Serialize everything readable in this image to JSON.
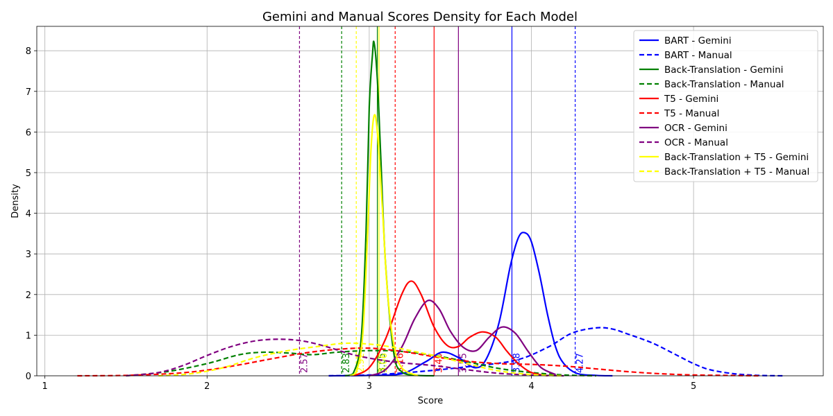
{
  "chart_data": {
    "type": "line",
    "title": "Gemini and Manual Scores Density for Each Model",
    "xlabel": "Score",
    "ylabel": "Density",
    "xlim": [
      0.95,
      5.8
    ],
    "ylim": [
      0,
      8.6
    ],
    "xticks": [
      1,
      2,
      3,
      4,
      5
    ],
    "yticks": [
      0,
      1,
      2,
      3,
      4,
      5,
      6,
      7,
      8
    ],
    "grid": true,
    "legend_position": "top-right",
    "series": [
      {
        "name": "BART - Gemini",
        "color": "#0000ff",
        "style": "solid",
        "x": [
          2.75,
          3.0,
          3.2,
          3.35,
          3.45,
          3.55,
          3.65,
          3.72,
          3.8,
          3.87,
          3.92,
          3.96,
          4.0,
          4.05,
          4.1,
          4.15,
          4.2,
          4.28,
          4.4,
          4.5
        ],
        "y": [
          0,
          0.01,
          0.05,
          0.35,
          0.58,
          0.45,
          0.2,
          0.4,
          1.3,
          2.7,
          3.4,
          3.52,
          3.3,
          2.5,
          1.5,
          0.7,
          0.3,
          0.06,
          0.01,
          0
        ]
      },
      {
        "name": "BART - Manual",
        "color": "#0000ff",
        "style": "dashed",
        "x": [
          2.75,
          3.0,
          3.3,
          3.6,
          3.9,
          4.1,
          4.25,
          4.4,
          4.5,
          4.6,
          4.75,
          4.9,
          5.0,
          5.1,
          5.25,
          5.4,
          5.55
        ],
        "y": [
          0,
          0.02,
          0.1,
          0.22,
          0.38,
          0.7,
          1.05,
          1.18,
          1.15,
          1.02,
          0.8,
          0.5,
          0.3,
          0.15,
          0.05,
          0.01,
          0
        ]
      },
      {
        "name": "Back-Translation - Gemini",
        "color": "#008000",
        "style": "solid",
        "x": [
          2.85,
          2.9,
          2.95,
          2.98,
          3.0,
          3.02,
          3.03,
          3.05,
          3.07,
          3.1,
          3.15,
          3.2,
          3.3,
          3.4
        ],
        "y": [
          0,
          0.05,
          0.9,
          3.5,
          6.6,
          7.9,
          8.2,
          7.3,
          5.5,
          2.8,
          0.6,
          0.1,
          0.01,
          0
        ]
      },
      {
        "name": "Back-Translation - Manual",
        "color": "#008000",
        "style": "dashed",
        "x": [
          1.5,
          1.75,
          2.0,
          2.2,
          2.35,
          2.5,
          2.65,
          2.8,
          3.0,
          3.2,
          3.4,
          3.6,
          3.8,
          4.0,
          4.2,
          4.4
        ],
        "y": [
          0,
          0.1,
          0.3,
          0.52,
          0.58,
          0.56,
          0.52,
          0.58,
          0.62,
          0.6,
          0.5,
          0.35,
          0.18,
          0.08,
          0.02,
          0
        ]
      },
      {
        "name": "T5 - Gemini",
        "color": "#ff0000",
        "style": "solid",
        "x": [
          2.9,
          3.0,
          3.1,
          3.2,
          3.26,
          3.32,
          3.4,
          3.48,
          3.55,
          3.62,
          3.7,
          3.78,
          3.85,
          3.92,
          4.0,
          4.1
        ],
        "y": [
          0,
          0.2,
          0.9,
          2.0,
          2.33,
          2.0,
          1.2,
          0.75,
          0.72,
          0.95,
          1.08,
          0.95,
          0.6,
          0.3,
          0.08,
          0
        ]
      },
      {
        "name": "T5 - Manual",
        "color": "#ff0000",
        "style": "dashed",
        "x": [
          1.2,
          1.5,
          1.8,
          2.0,
          2.2,
          2.4,
          2.6,
          2.8,
          3.0,
          3.2,
          3.4,
          3.6,
          3.8,
          4.0,
          4.2,
          4.4,
          4.6,
          4.8,
          5.0,
          5.2,
          5.4
        ],
        "y": [
          0,
          0.01,
          0.06,
          0.14,
          0.27,
          0.42,
          0.56,
          0.65,
          0.68,
          0.6,
          0.47,
          0.36,
          0.3,
          0.28,
          0.24,
          0.17,
          0.1,
          0.05,
          0.02,
          0.01,
          0
        ]
      },
      {
        "name": "OCR - Gemini",
        "color": "#800080",
        "style": "solid",
        "x": [
          3.0,
          3.1,
          3.2,
          3.28,
          3.36,
          3.43,
          3.5,
          3.58,
          3.66,
          3.74,
          3.82,
          3.9,
          3.98,
          4.06,
          4.15
        ],
        "y": [
          0,
          0.15,
          0.7,
          1.4,
          1.85,
          1.65,
          1.1,
          0.7,
          0.62,
          0.95,
          1.2,
          1.05,
          0.6,
          0.2,
          0.03
        ]
      },
      {
        "name": "OCR - Manual",
        "color": "#800080",
        "style": "dashed",
        "x": [
          1.5,
          1.7,
          1.85,
          2.0,
          2.15,
          2.3,
          2.45,
          2.6,
          2.75,
          2.9,
          3.05,
          3.2,
          3.4,
          3.6,
          3.8,
          4.0,
          4.2
        ],
        "y": [
          0,
          0.08,
          0.25,
          0.5,
          0.72,
          0.86,
          0.9,
          0.85,
          0.7,
          0.52,
          0.4,
          0.32,
          0.25,
          0.15,
          0.06,
          0.02,
          0
        ]
      },
      {
        "name": "Back-Translation + T5 - Gemini",
        "color": "#ffff00",
        "style": "solid",
        "x": [
          2.88,
          2.92,
          2.96,
          2.99,
          3.01,
          3.03,
          3.05,
          3.08,
          3.11,
          3.15,
          3.2,
          3.3
        ],
        "y": [
          0,
          0.1,
          1.0,
          3.5,
          5.5,
          6.4,
          6.0,
          4.2,
          2.2,
          0.8,
          0.2,
          0
        ]
      },
      {
        "name": "Back-Translation + T5 - Manual",
        "color": "#ffff00",
        "style": "dashed",
        "x": [
          1.7,
          1.9,
          2.1,
          2.3,
          2.5,
          2.7,
          2.85,
          3.0,
          3.15,
          3.3,
          3.45,
          3.6,
          3.8,
          4.0,
          4.2
        ],
        "y": [
          0,
          0.05,
          0.2,
          0.45,
          0.62,
          0.73,
          0.8,
          0.78,
          0.7,
          0.58,
          0.45,
          0.3,
          0.12,
          0.03,
          0
        ]
      }
    ],
    "mean_lines": [
      {
        "value": 3.88,
        "label": "3.88",
        "color": "#0000ff",
        "style": "solid"
      },
      {
        "value": 4.27,
        "label": "4.27",
        "color": "#0000ff",
        "style": "dashed"
      },
      {
        "value": 3.05,
        "label": "3.05",
        "color": "#008000",
        "style": "solid"
      },
      {
        "value": 2.83,
        "label": "2.83",
        "color": "#008000",
        "style": "dashed"
      },
      {
        "value": 3.4,
        "label": "3.40",
        "color": "#ff0000",
        "style": "solid"
      },
      {
        "value": 3.16,
        "label": "3.16",
        "color": "#ff0000",
        "style": "dashed"
      },
      {
        "value": 3.55,
        "label": "3.55",
        "color": "#800080",
        "style": "solid"
      },
      {
        "value": 2.57,
        "label": "2.57",
        "color": "#800080",
        "style": "dashed"
      },
      {
        "value": 3.06,
        "label": "3.06",
        "color": "#ffff00",
        "style": "solid"
      },
      {
        "value": 2.92,
        "label": "2.92",
        "color": "#ffff00",
        "style": "dashed"
      }
    ]
  }
}
